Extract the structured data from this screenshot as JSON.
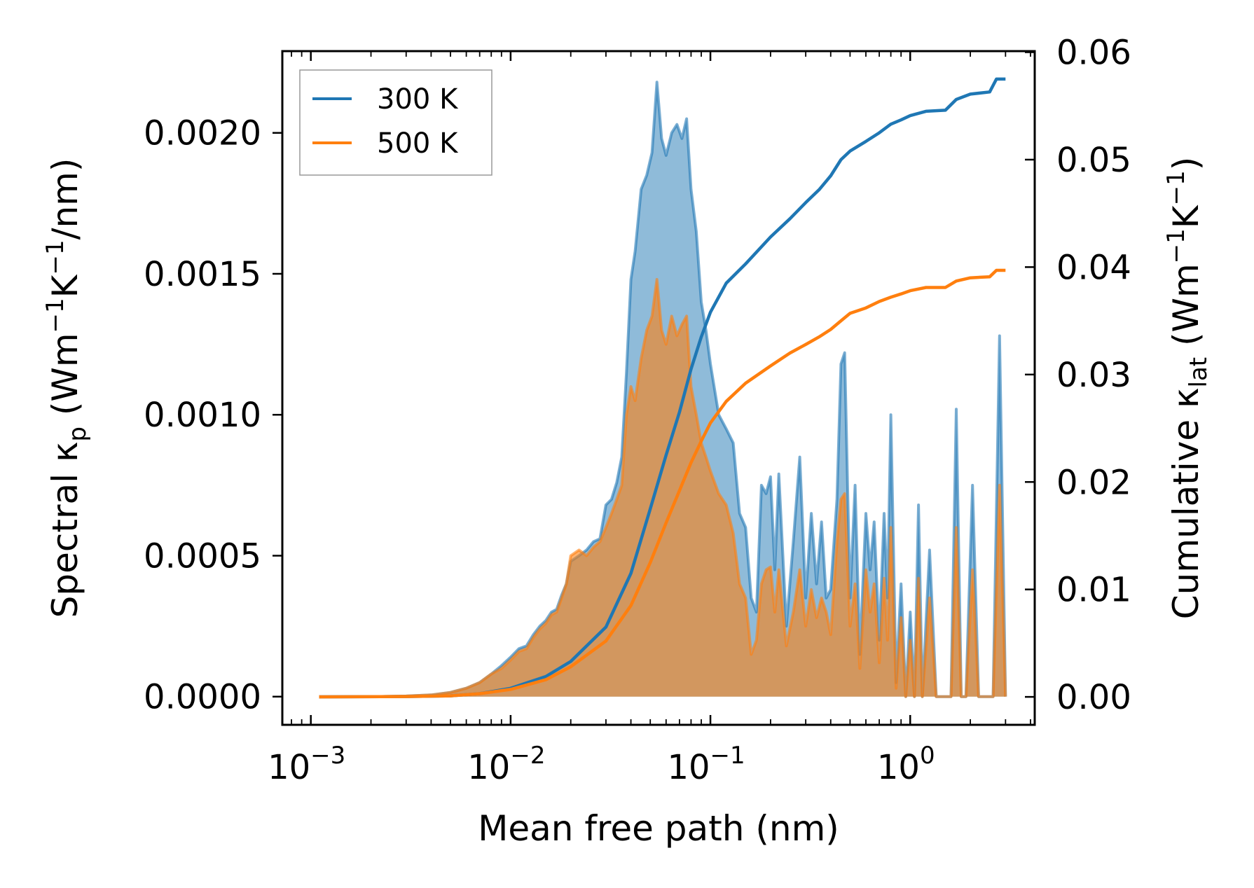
{
  "chart_data": {
    "type": "area+line",
    "x_scale": "log",
    "xlim": [
      0.00072,
      4.2
    ],
    "ylim_left": [
      -0.0001,
      0.00229
    ],
    "ylim_right": [
      -0.0026,
      0.0601
    ],
    "xlabel": "Mean free path (nm)",
    "ylabel_left": {
      "main": "Spectral κ",
      "sub": "p",
      "unit_a": " (Wm",
      "sup1": "−1",
      "unit_b": "K",
      "sup2": "−1",
      "unit_c": "/nm)"
    },
    "ylabel_right": {
      "main": "Cumulative κ",
      "sub": "lat",
      "unit_a": " (Wm",
      "sup1": "−1",
      "unit_b": "K",
      "sup2": "−1",
      "unit_c": ")"
    },
    "x_ticks": [
      {
        "value": 0.001,
        "base": "10",
        "exp": "−3"
      },
      {
        "value": 0.01,
        "base": "10",
        "exp": "−2"
      },
      {
        "value": 0.1,
        "base": "10",
        "exp": "−1"
      },
      {
        "value": 1,
        "base": "10",
        "exp": "0"
      }
    ],
    "y_left_ticks": [
      {
        "value": 0.0,
        "label": "0.0000"
      },
      {
        "value": 0.0005,
        "label": "0.0005"
      },
      {
        "value": 0.001,
        "label": "0.0010"
      },
      {
        "value": 0.0015,
        "label": "0.0015"
      },
      {
        "value": 0.002,
        "label": "0.0020"
      }
    ],
    "y_right_ticks": [
      {
        "value": 0.0,
        "label": "0.00"
      },
      {
        "value": 0.01,
        "label": "0.01"
      },
      {
        "value": 0.02,
        "label": "0.02"
      },
      {
        "value": 0.03,
        "label": "0.03"
      },
      {
        "value": 0.04,
        "label": "0.04"
      },
      {
        "value": 0.05,
        "label": "0.05"
      },
      {
        "value": 0.06,
        "label": "0.06"
      }
    ],
    "legend": {
      "position": "upper-left",
      "entries": [
        {
          "label": "300 K",
          "color": "#1f77b4"
        },
        {
          "label": "500 K",
          "color": "#ff7f0e"
        }
      ]
    },
    "series": [
      {
        "name": "300 K",
        "color": "#1f77b4",
        "spectral": [
          [
            0.0011,
            0
          ],
          [
            0.002,
            0
          ],
          [
            0.003,
            2e-06
          ],
          [
            0.004,
            6e-06
          ],
          [
            0.005,
            1.5e-05
          ],
          [
            0.006,
            3e-05
          ],
          [
            0.007,
            5e-05
          ],
          [
            0.008,
            8e-05
          ],
          [
            0.009,
            0.00011
          ],
          [
            0.01,
            0.00014
          ],
          [
            0.011,
            0.00017
          ],
          [
            0.012,
            0.00018
          ],
          [
            0.013,
            0.00022
          ],
          [
            0.014,
            0.00025
          ],
          [
            0.015,
            0.00027
          ],
          [
            0.016,
            0.0003
          ],
          [
            0.017,
            0.00031
          ],
          [
            0.018,
            0.00036
          ],
          [
            0.019,
            0.0004
          ],
          [
            0.02,
            0.00048
          ],
          [
            0.022,
            0.0005
          ],
          [
            0.024,
            0.00052
          ],
          [
            0.026,
            0.00055
          ],
          [
            0.028,
            0.00056
          ],
          [
            0.03,
            0.00068
          ],
          [
            0.032,
            0.0007
          ],
          [
            0.034,
            0.00076
          ],
          [
            0.036,
            0.00085
          ],
          [
            0.038,
            0.00115
          ],
          [
            0.04,
            0.00148
          ],
          [
            0.042,
            0.00158
          ],
          [
            0.045,
            0.0018
          ],
          [
            0.048,
            0.00185
          ],
          [
            0.051,
            0.00193
          ],
          [
            0.054,
            0.00218
          ],
          [
            0.057,
            0.00198
          ],
          [
            0.06,
            0.00192
          ],
          [
            0.064,
            0.002
          ],
          [
            0.068,
            0.00203
          ],
          [
            0.072,
            0.00198
          ],
          [
            0.076,
            0.00205
          ],
          [
            0.08,
            0.0018
          ],
          [
            0.085,
            0.00165
          ],
          [
            0.09,
            0.0014
          ],
          [
            0.095,
            0.0013
          ],
          [
            0.1,
            0.00118
          ],
          [
            0.11,
            0.001
          ],
          [
            0.12,
            0.00095
          ],
          [
            0.13,
            0.0009
          ],
          [
            0.14,
            0.00065
          ],
          [
            0.15,
            0.0006
          ],
          [
            0.16,
            0.00035
          ],
          [
            0.17,
            0.0003
          ],
          [
            0.18,
            0.00075
          ],
          [
            0.19,
            0.00072
          ],
          [
            0.2,
            0.00078
          ],
          [
            0.21,
            0.00045
          ],
          [
            0.22,
            0.00079
          ],
          [
            0.24,
            0.00025
          ],
          [
            0.26,
            0.00055
          ],
          [
            0.28,
            0.00085
          ],
          [
            0.3,
            0.00035
          ],
          [
            0.32,
            0.00065
          ],
          [
            0.34,
            0.0004
          ],
          [
            0.36,
            0.00062
          ],
          [
            0.38,
            0.00035
          ],
          [
            0.4,
            0.00038
          ],
          [
            0.43,
            0.0007
          ],
          [
            0.45,
            0.00118
          ],
          [
            0.47,
            0.00122
          ],
          [
            0.5,
            0.00035
          ],
          [
            0.53,
            0.00075
          ],
          [
            0.56,
            0.00015
          ],
          [
            0.6,
            0.00065
          ],
          [
            0.63,
            0.00045
          ],
          [
            0.66,
            0.00062
          ],
          [
            0.7,
            0.0002
          ],
          [
            0.74,
            0.00065
          ],
          [
            0.77,
            0.00035
          ],
          [
            0.8,
            0.001
          ],
          [
            0.85,
            5e-05
          ],
          [
            0.9,
            0.0004
          ],
          [
            0.95,
            0
          ],
          [
            1.0,
            0.0003
          ],
          [
            1.05,
            0
          ],
          [
            1.1,
            0.00068
          ],
          [
            1.15,
            0
          ],
          [
            1.25,
            0.00052
          ],
          [
            1.35,
            0
          ],
          [
            1.6,
            0
          ],
          [
            1.7,
            0.00102
          ],
          [
            1.8,
            0
          ],
          [
            1.9,
            0
          ],
          [
            2.05,
            0.00075
          ],
          [
            2.2,
            0
          ],
          [
            2.6,
            0
          ],
          [
            2.8,
            0.00128
          ],
          [
            3.0,
            0
          ]
        ],
        "cumulative": [
          [
            0.0011,
            0
          ],
          [
            0.003,
            3e-05
          ],
          [
            0.005,
            0.0001
          ],
          [
            0.007,
            0.0003
          ],
          [
            0.01,
            0.0008
          ],
          [
            0.015,
            0.0019
          ],
          [
            0.02,
            0.0033
          ],
          [
            0.03,
            0.0065
          ],
          [
            0.04,
            0.0115
          ],
          [
            0.05,
            0.0175
          ],
          [
            0.06,
            0.0225
          ],
          [
            0.07,
            0.0265
          ],
          [
            0.08,
            0.0305
          ],
          [
            0.09,
            0.0335
          ],
          [
            0.1,
            0.0358
          ],
          [
            0.12,
            0.0385
          ],
          [
            0.15,
            0.0403
          ],
          [
            0.2,
            0.0428
          ],
          [
            0.25,
            0.0445
          ],
          [
            0.3,
            0.046
          ],
          [
            0.35,
            0.0472
          ],
          [
            0.4,
            0.0485
          ],
          [
            0.45,
            0.05
          ],
          [
            0.5,
            0.0508
          ],
          [
            0.6,
            0.0517
          ],
          [
            0.7,
            0.0525
          ],
          [
            0.8,
            0.0533
          ],
          [
            0.9,
            0.0537
          ],
          [
            1.0,
            0.0541
          ],
          [
            1.2,
            0.0545
          ],
          [
            1.5,
            0.0546
          ],
          [
            1.7,
            0.0556
          ],
          [
            2.0,
            0.0561
          ],
          [
            2.5,
            0.0563
          ],
          [
            2.7,
            0.0575
          ],
          [
            3.0,
            0.0575
          ]
        ]
      },
      {
        "name": "500 K",
        "color": "#ff7f0e",
        "spectral": [
          [
            0.0011,
            0
          ],
          [
            0.002,
            0
          ],
          [
            0.003,
            2e-06
          ],
          [
            0.004,
            6e-06
          ],
          [
            0.005,
            1.5e-05
          ],
          [
            0.006,
            3e-05
          ],
          [
            0.007,
            5e-05
          ],
          [
            0.008,
            8e-05
          ],
          [
            0.009,
            0.0001
          ],
          [
            0.01,
            0.00013
          ],
          [
            0.011,
            0.00016
          ],
          [
            0.012,
            0.00017
          ],
          [
            0.013,
            0.00021
          ],
          [
            0.014,
            0.00024
          ],
          [
            0.015,
            0.00026
          ],
          [
            0.016,
            0.00029
          ],
          [
            0.017,
            0.0003
          ],
          [
            0.018,
            0.00035
          ],
          [
            0.019,
            0.0004
          ],
          [
            0.02,
            0.0005
          ],
          [
            0.022,
            0.00052
          ],
          [
            0.024,
            0.0005
          ],
          [
            0.026,
            0.00053
          ],
          [
            0.028,
            0.00055
          ],
          [
            0.03,
            0.0006
          ],
          [
            0.032,
            0.00065
          ],
          [
            0.034,
            0.0007
          ],
          [
            0.036,
            0.00075
          ],
          [
            0.038,
            0.001
          ],
          [
            0.04,
            0.0011
          ],
          [
            0.042,
            0.00105
          ],
          [
            0.045,
            0.0012
          ],
          [
            0.048,
            0.0013
          ],
          [
            0.051,
            0.00135
          ],
          [
            0.054,
            0.00148
          ],
          [
            0.057,
            0.0013
          ],
          [
            0.06,
            0.00125
          ],
          [
            0.064,
            0.00135
          ],
          [
            0.068,
            0.00128
          ],
          [
            0.072,
            0.00132
          ],
          [
            0.076,
            0.00135
          ],
          [
            0.08,
            0.0011
          ],
          [
            0.085,
            0.001
          ],
          [
            0.09,
            0.0009
          ],
          [
            0.095,
            0.00085
          ],
          [
            0.1,
            0.0008
          ],
          [
            0.11,
            0.00072
          ],
          [
            0.12,
            0.00068
          ],
          [
            0.13,
            0.00058
          ],
          [
            0.14,
            0.0004
          ],
          [
            0.15,
            0.00035
          ],
          [
            0.16,
            0.00015
          ],
          [
            0.17,
            0.0002
          ],
          [
            0.18,
            0.0004
          ],
          [
            0.19,
            0.00045
          ],
          [
            0.2,
            0.00046
          ],
          [
            0.21,
            0.0003
          ],
          [
            0.22,
            0.00045
          ],
          [
            0.24,
            0.00018
          ],
          [
            0.26,
            0.0003
          ],
          [
            0.28,
            0.00045
          ],
          [
            0.3,
            0.00025
          ],
          [
            0.32,
            0.00038
          ],
          [
            0.34,
            0.00028
          ],
          [
            0.36,
            0.00035
          ],
          [
            0.38,
            0.0003
          ],
          [
            0.4,
            0.00022
          ],
          [
            0.43,
            0.00055
          ],
          [
            0.45,
            0.0007
          ],
          [
            0.47,
            0.00072
          ],
          [
            0.5,
            0.00025
          ],
          [
            0.53,
            0.0004
          ],
          [
            0.56,
            0.0001
          ],
          [
            0.6,
            0.00045
          ],
          [
            0.63,
            0.0003
          ],
          [
            0.66,
            0.0004
          ],
          [
            0.7,
            0.00012
          ],
          [
            0.74,
            0.00042
          ],
          [
            0.77,
            0.0002
          ],
          [
            0.8,
            0.0006
          ],
          [
            0.85,
            3e-05
          ],
          [
            0.9,
            0.00028
          ],
          [
            0.95,
            0
          ],
          [
            1.0,
            0.0002
          ],
          [
            1.05,
            0
          ],
          [
            1.1,
            0.00042
          ],
          [
            1.15,
            0
          ],
          [
            1.25,
            0.00035
          ],
          [
            1.35,
            0
          ],
          [
            1.6,
            0
          ],
          [
            1.7,
            0.0006
          ],
          [
            1.8,
            0
          ],
          [
            1.9,
            0
          ],
          [
            2.05,
            0.00045
          ],
          [
            2.2,
            0
          ],
          [
            2.6,
            0
          ],
          [
            2.8,
            0.00075
          ],
          [
            3.0,
            0
          ]
        ],
        "cumulative": [
          [
            0.0011,
            0
          ],
          [
            0.003,
            3e-05
          ],
          [
            0.005,
            0.0001
          ],
          [
            0.007,
            0.0003
          ],
          [
            0.01,
            0.0007
          ],
          [
            0.015,
            0.0016
          ],
          [
            0.02,
            0.0028
          ],
          [
            0.03,
            0.0052
          ],
          [
            0.04,
            0.0085
          ],
          [
            0.05,
            0.0125
          ],
          [
            0.06,
            0.0162
          ],
          [
            0.07,
            0.0192
          ],
          [
            0.08,
            0.0218
          ],
          [
            0.09,
            0.0238
          ],
          [
            0.1,
            0.0255
          ],
          [
            0.12,
            0.0275
          ],
          [
            0.15,
            0.0292
          ],
          [
            0.2,
            0.0308
          ],
          [
            0.25,
            0.032
          ],
          [
            0.3,
            0.0328
          ],
          [
            0.35,
            0.0335
          ],
          [
            0.4,
            0.0342
          ],
          [
            0.45,
            0.035
          ],
          [
            0.5,
            0.0357
          ],
          [
            0.6,
            0.0362
          ],
          [
            0.7,
            0.0368
          ],
          [
            0.8,
            0.0372
          ],
          [
            0.9,
            0.0375
          ],
          [
            1.0,
            0.0378
          ],
          [
            1.2,
            0.0381
          ],
          [
            1.5,
            0.0381
          ],
          [
            1.7,
            0.0387
          ],
          [
            2.0,
            0.039
          ],
          [
            2.5,
            0.0391
          ],
          [
            2.7,
            0.0397
          ],
          [
            3.0,
            0.0397
          ]
        ]
      }
    ]
  }
}
